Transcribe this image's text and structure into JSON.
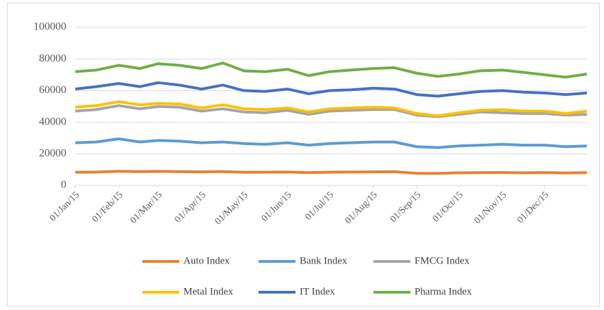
{
  "chart_data": {
    "type": "line",
    "x": [
      "01/Jan/15",
      "16/Jan/15",
      "01/Feb/15",
      "16/Feb/15",
      "01/Mar/15",
      "16/Mar/15",
      "01/Apr/15",
      "16/Apr/15",
      "01/May/15",
      "16/May/15",
      "01/Jun/15",
      "16/Jun/15",
      "01/Jul/15",
      "16/Jul/15",
      "01/Aug/15",
      "16/Aug/15",
      "01/Sep/15",
      "16/Sep/15",
      "01/Oct/15",
      "16/Oct/15",
      "01/Nov/15",
      "16/Nov/15",
      "01/Dec/15",
      "16/Dec/15",
      "31/Dec/15"
    ],
    "series": [
      {
        "name": "Auto Index",
        "color": "#ed7d31",
        "values": [
          8300,
          8500,
          9000,
          8700,
          8900,
          8700,
          8600,
          8800,
          8300,
          8400,
          8500,
          8100,
          8400,
          8500,
          8600,
          8700,
          7700,
          7600,
          8000,
          8100,
          8200,
          8000,
          8200,
          7900,
          8100
        ]
      },
      {
        "name": "Bank Index",
        "color": "#5b9bd5",
        "values": [
          27000,
          27500,
          29500,
          27500,
          28500,
          28000,
          27000,
          27500,
          26500,
          26000,
          27000,
          25500,
          26500,
          27000,
          27500,
          27500,
          24500,
          24000,
          25000,
          25500,
          26000,
          25500,
          25500,
          24500,
          25000
        ]
      },
      {
        "name": "FMCG Index",
        "color": "#a5a5a5",
        "values": [
          47000,
          48000,
          50500,
          48500,
          50000,
          49500,
          47000,
          48500,
          46500,
          46000,
          47500,
          45000,
          47000,
          47500,
          48000,
          48000,
          44500,
          43500,
          45000,
          46500,
          46000,
          45500,
          45500,
          44500,
          45000
        ]
      },
      {
        "name": "Metal Index",
        "color": "#ffc000",
        "values": [
          49500,
          50500,
          53000,
          51000,
          52000,
          51500,
          49000,
          51000,
          48500,
          48000,
          49000,
          46500,
          48500,
          49000,
          49500,
          49000,
          45500,
          44000,
          46000,
          47500,
          48000,
          47000,
          47000,
          45500,
          47000
        ]
      },
      {
        "name": "IT Index",
        "color": "#4472c4",
        "values": [
          61000,
          62500,
          64500,
          62500,
          65000,
          63500,
          61000,
          63500,
          60000,
          59500,
          61000,
          58000,
          60000,
          60500,
          61500,
          61000,
          57500,
          56500,
          58000,
          59500,
          60000,
          59000,
          58500,
          57500,
          58500
        ]
      },
      {
        "name": "Pharma Index",
        "color": "#70ad47",
        "values": [
          72000,
          73000,
          76000,
          74000,
          77000,
          76000,
          74000,
          77500,
          72500,
          72000,
          73500,
          69500,
          72000,
          73000,
          74000,
          74500,
          71000,
          69000,
          70500,
          72500,
          73000,
          71500,
          70000,
          68500,
          70500
        ]
      }
    ],
    "xlim": [
      "01/Jan/15",
      "31/Dec/15"
    ],
    "xticks": [
      "01/Jan/15",
      "01/Feb/15",
      "01/Mar/15",
      "01/Apr/15",
      "01/May/15",
      "01/Jun/15",
      "01/Jul/15",
      "01/Aug/15",
      "01/Sep/15",
      "01/Oct/15",
      "01/Nov/15",
      "01/Dec/15"
    ],
    "ylim": [
      0,
      100000
    ],
    "yticks": [
      0,
      20000,
      40000,
      60000,
      80000,
      100000
    ],
    "grid": true,
    "legend": "bottom"
  }
}
